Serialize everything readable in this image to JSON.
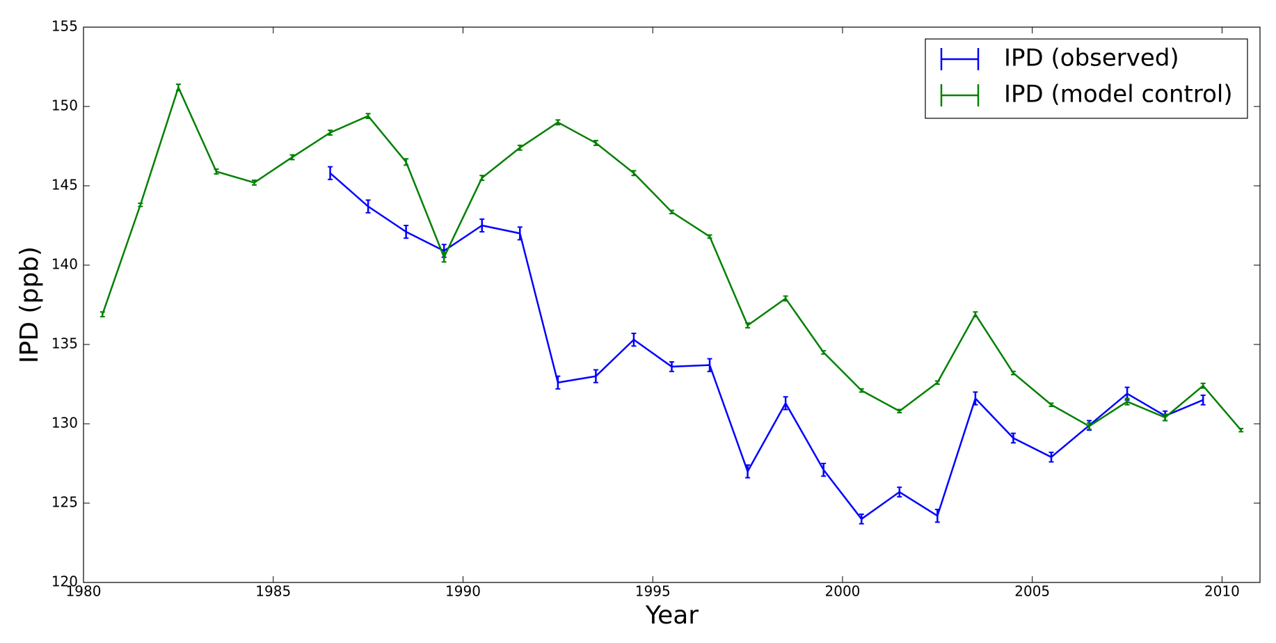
{
  "chart_data": {
    "type": "line",
    "xlabel": "Year",
    "ylabel": "IPD (ppb)",
    "xlim": [
      1980,
      2011
    ],
    "xticks": [
      1980,
      1985,
      1990,
      1995,
      2000,
      2005,
      2010
    ],
    "ylim": [
      120,
      155
    ],
    "yticks": [
      120,
      125,
      130,
      135,
      140,
      145,
      150,
      155
    ],
    "legend": "upper right",
    "series": [
      {
        "name": "IPD (observed)",
        "color": "#0000ff",
        "x": [
          1986.5,
          1987.5,
          1988.5,
          1989.5,
          1990.5,
          1991.5,
          1992.5,
          1993.5,
          1994.5,
          1995.5,
          1996.5,
          1997.5,
          1998.5,
          1999.5,
          2000.5,
          2001.5,
          2002.5,
          2003.5,
          2004.5,
          2005.5,
          2006.5,
          2007.5,
          2008.5,
          2009.5
        ],
        "values": [
          145.8,
          143.7,
          142.1,
          140.9,
          142.5,
          142.0,
          132.6,
          133.0,
          135.3,
          133.6,
          133.7,
          127.0,
          131.3,
          127.1,
          124.0,
          125.7,
          124.2,
          131.6,
          129.1,
          127.9,
          129.9,
          131.9,
          130.5,
          131.5
        ],
        "errors": [
          0.4,
          0.4,
          0.4,
          0.4,
          0.4,
          0.4,
          0.4,
          0.4,
          0.4,
          0.3,
          0.4,
          0.4,
          0.4,
          0.4,
          0.3,
          0.3,
          0.4,
          0.4,
          0.3,
          0.3,
          0.3,
          0.4,
          0.3,
          0.3
        ]
      },
      {
        "name": "IPD (model control)",
        "color": "#008000",
        "x": [
          1980.5,
          1981.5,
          1982.5,
          1983.5,
          1984.5,
          1985.5,
          1986.5,
          1987.5,
          1988.5,
          1989.5,
          1990.5,
          1991.5,
          1992.5,
          1993.5,
          1994.5,
          1995.5,
          1996.5,
          1997.5,
          1998.5,
          1999.5,
          2000.5,
          2001.5,
          2002.5,
          2003.5,
          2004.5,
          2005.5,
          2006.5,
          2007.5,
          2008.5,
          2009.5,
          2010.5
        ],
        "values": [
          136.9,
          143.8,
          151.2,
          145.9,
          145.2,
          146.8,
          148.35,
          149.4,
          146.5,
          140.5,
          145.5,
          147.4,
          149.0,
          147.7,
          145.8,
          143.35,
          141.8,
          136.2,
          137.9,
          134.5,
          132.1,
          130.8,
          132.6,
          136.9,
          133.2,
          131.2,
          129.85,
          131.4,
          130.4,
          132.4,
          129.6
        ],
        "errors": [
          0.15,
          0.1,
          0.2,
          0.15,
          0.15,
          0.15,
          0.15,
          0.15,
          0.2,
          0.3,
          0.15,
          0.15,
          0.15,
          0.15,
          0.15,
          0.1,
          0.1,
          0.15,
          0.15,
          0.1,
          0.1,
          0.1,
          0.1,
          0.15,
          0.1,
          0.1,
          0.2,
          0.2,
          0.2,
          0.15,
          0.1
        ]
      }
    ]
  }
}
